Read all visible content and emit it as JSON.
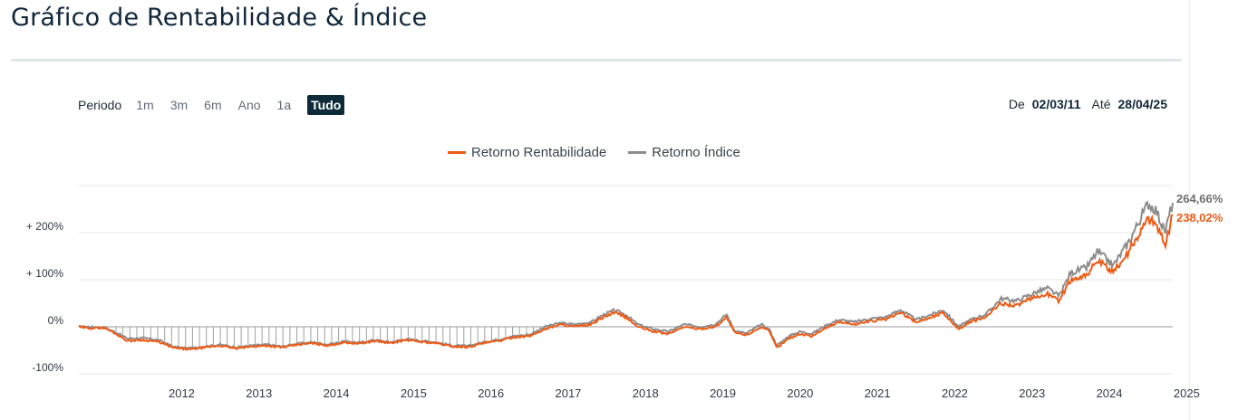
{
  "page": {
    "title": "Gráfico de Rentabilidade & Índice"
  },
  "controls": {
    "period_label": "Periodo",
    "periods": [
      "1m",
      "3m",
      "6m",
      "Ano",
      "1a",
      "Tudo"
    ],
    "active_period": "Tudo",
    "date_from_label": "De",
    "date_from": "02/03/11",
    "date_to_label": "Até",
    "date_to": "28/04/25"
  },
  "colors": {
    "rentabilidade": "#f05a14",
    "indice": "#8c8c8c",
    "grid": "#e6e8ea",
    "zero": "#9a9a9a"
  },
  "chart_data": {
    "type": "line",
    "title": "",
    "xlabel": "",
    "ylabel": "",
    "ylim": [
      -100,
      300
    ],
    "xlim": [
      2011.17,
      2025.32
    ],
    "y_ticks": [
      {
        "value": 200,
        "label": "+ 200%"
      },
      {
        "value": 100,
        "label": "+ 100%"
      },
      {
        "value": 0,
        "label": "0%"
      },
      {
        "value": -100,
        "label": "-100%"
      }
    ],
    "x_ticks": [
      "2012",
      "2013",
      "2014",
      "2015",
      "2016",
      "2017",
      "2018",
      "2019",
      "2020",
      "2021",
      "2022",
      "2023",
      "2024",
      "2025"
    ],
    "grid": true,
    "legend_position": "top-center",
    "series": [
      {
        "name": "Retorno Rentabilidade",
        "color_key": "rentabilidade",
        "end_label": "238,02%",
        "points": [
          [
            2011.17,
            0
          ],
          [
            2011.3,
            -3
          ],
          [
            2011.5,
            -2
          ],
          [
            2011.65,
            -15
          ],
          [
            2011.8,
            -30
          ],
          [
            2012.0,
            -28
          ],
          [
            2012.2,
            -32
          ],
          [
            2012.4,
            -45
          ],
          [
            2012.6,
            -48
          ],
          [
            2012.8,
            -44
          ],
          [
            2013.0,
            -40
          ],
          [
            2013.2,
            -46
          ],
          [
            2013.4,
            -42
          ],
          [
            2013.6,
            -40
          ],
          [
            2013.8,
            -44
          ],
          [
            2014.0,
            -38
          ],
          [
            2014.2,
            -35
          ],
          [
            2014.4,
            -40
          ],
          [
            2014.6,
            -33
          ],
          [
            2014.8,
            -36
          ],
          [
            2015.0,
            -30
          ],
          [
            2015.2,
            -35
          ],
          [
            2015.4,
            -28
          ],
          [
            2015.6,
            -32
          ],
          [
            2015.8,
            -35
          ],
          [
            2016.0,
            -42
          ],
          [
            2016.2,
            -43
          ],
          [
            2016.4,
            -35
          ],
          [
            2016.6,
            -30
          ],
          [
            2016.8,
            -22
          ],
          [
            2017.0,
            -20
          ],
          [
            2017.2,
            -5
          ],
          [
            2017.4,
            5
          ],
          [
            2017.6,
            0
          ],
          [
            2017.8,
            5
          ],
          [
            2017.95,
            20
          ],
          [
            2018.1,
            30
          ],
          [
            2018.25,
            20
          ],
          [
            2018.4,
            0
          ],
          [
            2018.6,
            -10
          ],
          [
            2018.8,
            -15
          ],
          [
            2019.0,
            0
          ],
          [
            2019.2,
            -5
          ],
          [
            2019.4,
            0
          ],
          [
            2019.55,
            20
          ],
          [
            2019.65,
            -12
          ],
          [
            2019.8,
            -18
          ],
          [
            2020.0,
            0
          ],
          [
            2020.1,
            -10
          ],
          [
            2020.2,
            -45
          ],
          [
            2020.35,
            -25
          ],
          [
            2020.5,
            -15
          ],
          [
            2020.65,
            -20
          ],
          [
            2020.8,
            -5
          ],
          [
            2021.0,
            10
          ],
          [
            2021.2,
            5
          ],
          [
            2021.4,
            12
          ],
          [
            2021.6,
            15
          ],
          [
            2021.8,
            30
          ],
          [
            2022.0,
            10
          ],
          [
            2022.2,
            20
          ],
          [
            2022.35,
            30
          ],
          [
            2022.55,
            -5
          ],
          [
            2022.7,
            10
          ],
          [
            2022.9,
            20
          ],
          [
            2023.1,
            50
          ],
          [
            2023.3,
            45
          ],
          [
            2023.5,
            60
          ],
          [
            2023.7,
            70
          ],
          [
            2023.85,
            55
          ],
          [
            2024.0,
            100
          ],
          [
            2024.2,
            110
          ],
          [
            2024.35,
            140
          ],
          [
            2024.55,
            115
          ],
          [
            2024.75,
            160
          ],
          [
            2025.0,
            230
          ],
          [
            2025.1,
            220
          ],
          [
            2025.22,
            175
          ],
          [
            2025.28,
            210
          ],
          [
            2025.32,
            238
          ]
        ]
      },
      {
        "name": "Retorno Índice",
        "color_key": "indice",
        "end_label": "264,66%",
        "points": [
          [
            2011.17,
            0
          ],
          [
            2011.3,
            0
          ],
          [
            2011.5,
            -2
          ],
          [
            2011.65,
            -12
          ],
          [
            2011.8,
            -25
          ],
          [
            2012.0,
            -24
          ],
          [
            2012.2,
            -28
          ],
          [
            2012.4,
            -43
          ],
          [
            2012.6,
            -46
          ],
          [
            2012.8,
            -42
          ],
          [
            2013.0,
            -38
          ],
          [
            2013.2,
            -44
          ],
          [
            2013.4,
            -40
          ],
          [
            2013.6,
            -38
          ],
          [
            2013.8,
            -42
          ],
          [
            2014.0,
            -36
          ],
          [
            2014.2,
            -33
          ],
          [
            2014.4,
            -38
          ],
          [
            2014.6,
            -31
          ],
          [
            2014.8,
            -34
          ],
          [
            2015.0,
            -28
          ],
          [
            2015.2,
            -33
          ],
          [
            2015.4,
            -26
          ],
          [
            2015.6,
            -30
          ],
          [
            2015.8,
            -33
          ],
          [
            2016.0,
            -40
          ],
          [
            2016.2,
            -41
          ],
          [
            2016.4,
            -33
          ],
          [
            2016.6,
            -27
          ],
          [
            2016.8,
            -20
          ],
          [
            2017.0,
            -17
          ],
          [
            2017.2,
            0
          ],
          [
            2017.4,
            8
          ],
          [
            2017.6,
            5
          ],
          [
            2017.8,
            10
          ],
          [
            2017.95,
            25
          ],
          [
            2018.1,
            35
          ],
          [
            2018.25,
            25
          ],
          [
            2018.4,
            5
          ],
          [
            2018.6,
            -5
          ],
          [
            2018.8,
            -10
          ],
          [
            2019.0,
            5
          ],
          [
            2019.2,
            0
          ],
          [
            2019.4,
            5
          ],
          [
            2019.55,
            26
          ],
          [
            2019.65,
            -8
          ],
          [
            2019.8,
            -14
          ],
          [
            2020.0,
            5
          ],
          [
            2020.1,
            -5
          ],
          [
            2020.2,
            -40
          ],
          [
            2020.35,
            -20
          ],
          [
            2020.5,
            -10
          ],
          [
            2020.65,
            -15
          ],
          [
            2020.8,
            0
          ],
          [
            2021.0,
            15
          ],
          [
            2021.2,
            10
          ],
          [
            2021.4,
            17
          ],
          [
            2021.6,
            20
          ],
          [
            2021.8,
            36
          ],
          [
            2022.0,
            15
          ],
          [
            2022.2,
            26
          ],
          [
            2022.35,
            36
          ],
          [
            2022.55,
            0
          ],
          [
            2022.7,
            15
          ],
          [
            2022.9,
            26
          ],
          [
            2023.1,
            60
          ],
          [
            2023.3,
            55
          ],
          [
            2023.5,
            70
          ],
          [
            2023.7,
            82
          ],
          [
            2023.85,
            65
          ],
          [
            2024.0,
            115
          ],
          [
            2024.2,
            125
          ],
          [
            2024.35,
            160
          ],
          [
            2024.55,
            130
          ],
          [
            2024.75,
            180
          ],
          [
            2025.0,
            262
          ],
          [
            2025.1,
            250
          ],
          [
            2025.22,
            200
          ],
          [
            2025.28,
            240
          ],
          [
            2025.32,
            265
          ]
        ]
      }
    ]
  }
}
